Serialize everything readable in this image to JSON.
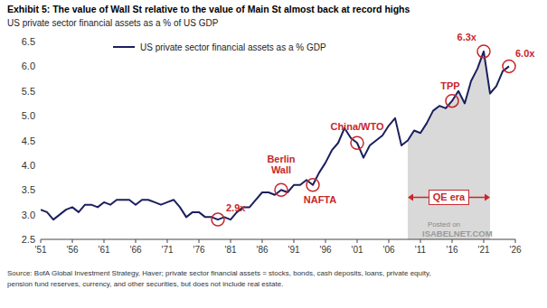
{
  "chart_data": {
    "type": "line",
    "title": "Exhibit 5: The value of Wall St relative to the value of Main St almost back at record highs",
    "subtitle": "US private sector financial assets as a % of US GDP",
    "source": [
      "Source: BofA Global Investment Strategy, Haver; private sector financial assets = stocks, bonds, cash deposits, loans, private equity,",
      "pension fund reserves, currency, and other securities, but does not include real estate."
    ],
    "watermark": [
      "Posted on",
      "ISABELNET.COM"
    ],
    "x": [
      1951,
      1952,
      1953,
      1954,
      1955,
      1956,
      1957,
      1958,
      1959,
      1960,
      1961,
      1962,
      1963,
      1964,
      1965,
      1966,
      1967,
      1968,
      1969,
      1970,
      1971,
      1972,
      1973,
      1974,
      1975,
      1976,
      1977,
      1978,
      1979,
      1980,
      1981,
      1982,
      1983,
      1984,
      1985,
      1986,
      1987,
      1988,
      1989,
      1990,
      1991,
      1992,
      1993,
      1994,
      1995,
      1996,
      1997,
      1998,
      1999,
      2000,
      2001,
      2002,
      2003,
      2004,
      2005,
      2006,
      2007,
      2008,
      2009,
      2010,
      2011,
      2012,
      2013,
      2014,
      2015,
      2016,
      2017,
      2018,
      2019,
      2020,
      2021,
      2022,
      2023,
      2024,
      2025
    ],
    "series": [
      {
        "name": "US private sector financial assets as a % GDP",
        "color": "#1b1f5e",
        "values": [
          3.1,
          3.05,
          2.9,
          3.0,
          3.1,
          3.15,
          3.05,
          3.2,
          3.2,
          3.15,
          3.25,
          3.2,
          3.3,
          3.3,
          3.3,
          3.2,
          3.3,
          3.3,
          3.25,
          3.2,
          3.25,
          3.3,
          3.15,
          2.95,
          3.05,
          3.05,
          2.95,
          2.95,
          2.9,
          2.95,
          2.9,
          3.05,
          3.15,
          3.15,
          3.3,
          3.45,
          3.45,
          3.4,
          3.5,
          3.45,
          3.6,
          3.6,
          3.7,
          3.6,
          3.85,
          4.05,
          4.3,
          4.45,
          4.75,
          4.55,
          4.45,
          4.15,
          4.4,
          4.5,
          4.6,
          4.8,
          4.95,
          4.4,
          4.5,
          4.7,
          4.65,
          4.85,
          5.1,
          5.2,
          5.15,
          5.3,
          5.5,
          5.25,
          5.7,
          5.95,
          6.3,
          5.45,
          5.6,
          5.9,
          6.0
        ]
      }
    ],
    "xlim": [
      1951,
      2026
    ],
    "xticks": [
      {
        "value": 1951,
        "label": "'51"
      },
      {
        "value": 1956,
        "label": "'56"
      },
      {
        "value": 1961,
        "label": "'61"
      },
      {
        "value": 1966,
        "label": "'66"
      },
      {
        "value": 1971,
        "label": "'71"
      },
      {
        "value": 1976,
        "label": "'76"
      },
      {
        "value": 1981,
        "label": "'81"
      },
      {
        "value": 1986,
        "label": "'86"
      },
      {
        "value": 1991,
        "label": "'91"
      },
      {
        "value": 1996,
        "label": "'96"
      },
      {
        "value": 2001,
        "label": "'01"
      },
      {
        "value": 2006,
        "label": "'06"
      },
      {
        "value": 2011,
        "label": "'11"
      },
      {
        "value": 2016,
        "label": "'16"
      },
      {
        "value": 2021,
        "label": "'21"
      },
      {
        "value": 2026,
        "label": "'26"
      }
    ],
    "ylim": [
      2.5,
      6.5
    ],
    "yticks": [
      2.5,
      {
        "value": 3,
        "label": "3.0"
      },
      3.5,
      {
        "value": 4,
        "label": "4.0"
      },
      4.5,
      {
        "value": 5,
        "label": "5.0"
      },
      5.5,
      {
        "value": 6,
        "label": "6.0"
      },
      6.5
    ],
    "grid": false,
    "legend": "top-left",
    "annotations": [
      {
        "text": "2.9x",
        "x": 1979,
        "y": 2.9
      },
      {
        "text": "Berlin Wall",
        "x": 1989,
        "y": 3.5
      },
      {
        "text": "NAFTA",
        "x": 1994,
        "y": 3.6
      },
      {
        "text": "China/WTO",
        "x": 2001,
        "y": 4.45
      },
      {
        "text": "TPP",
        "x": 2016,
        "y": 5.3
      },
      {
        "text": "6.3x",
        "x": 2021,
        "y": 6.3
      },
      {
        "text": "6.0x",
        "x": 2025,
        "y": 6.0
      }
    ],
    "shaded": {
      "label": "QE era",
      "x": [
        2009,
        2022
      ],
      "y": 3.35
    }
  }
}
